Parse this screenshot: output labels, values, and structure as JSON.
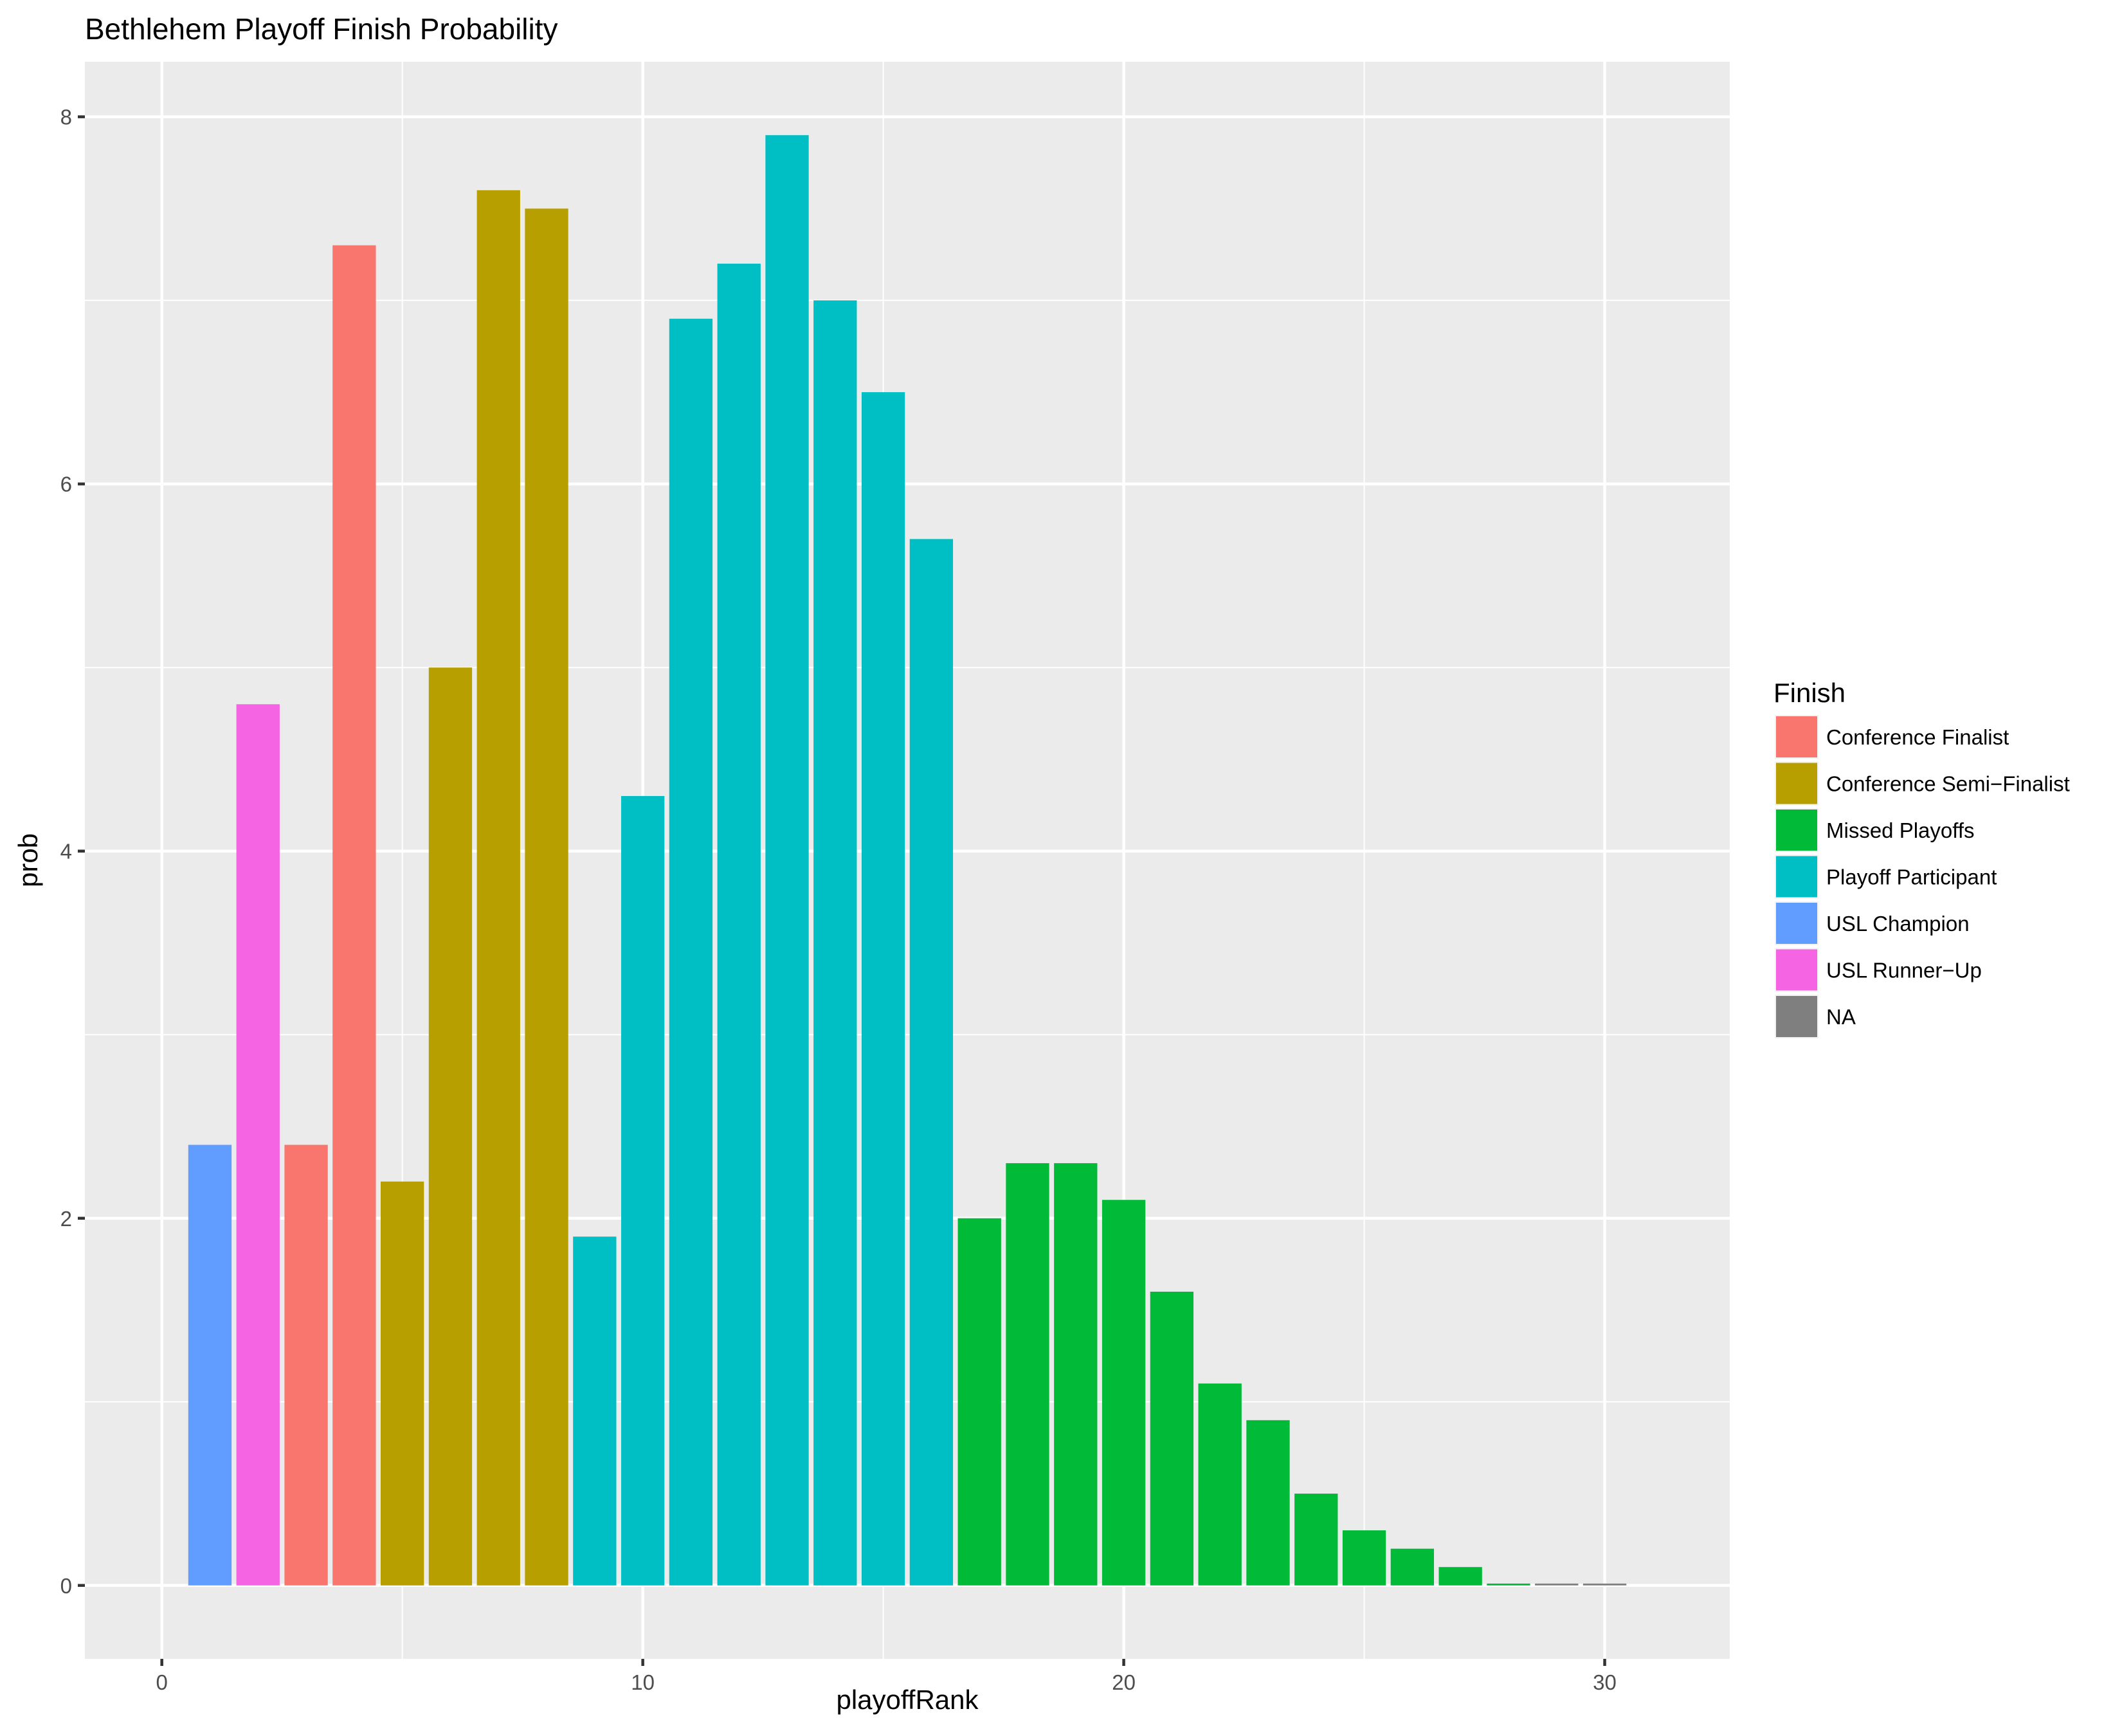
{
  "chart_data": {
    "type": "bar",
    "title": "Bethlehem Playoff Finish Probability",
    "xlabel": "playoffRank",
    "ylabel": "prob",
    "xlim": [
      -1.6,
      32.6
    ],
    "ylim": [
      -0.4,
      8.3
    ],
    "x_ticks": [
      0,
      10,
      20,
      30
    ],
    "y_ticks": [
      0,
      2,
      4,
      6,
      8
    ],
    "grid": true,
    "legend_title": "Finish",
    "legend_position": "right",
    "legend": [
      {
        "name": "Conference Finalist",
        "color": "#F8766D"
      },
      {
        "name": "Conference Semi−Finalist",
        "color": "#B79F00"
      },
      {
        "name": "Missed Playoffs",
        "color": "#00BA38"
      },
      {
        "name": "Playoff Participant",
        "color": "#00BFC4"
      },
      {
        "name": "USL Champion",
        "color": "#619CFF"
      },
      {
        "name": "USL Runner−Up",
        "color": "#F564E3"
      },
      {
        "name": "NA",
        "color": "#7F7F7F"
      }
    ],
    "bars": [
      {
        "x": 1,
        "y": 2.4,
        "finish": "USL Champion"
      },
      {
        "x": 2,
        "y": 4.8,
        "finish": "USL Runner−Up"
      },
      {
        "x": 3,
        "y": 2.4,
        "finish": "Conference Finalist"
      },
      {
        "x": 4,
        "y": 7.3,
        "finish": "Conference Finalist"
      },
      {
        "x": 5,
        "y": 2.2,
        "finish": "Conference Semi−Finalist"
      },
      {
        "x": 6,
        "y": 5.0,
        "finish": "Conference Semi−Finalist"
      },
      {
        "x": 7,
        "y": 7.6,
        "finish": "Conference Semi−Finalist"
      },
      {
        "x": 8,
        "y": 7.5,
        "finish": "Conference Semi−Finalist"
      },
      {
        "x": 9,
        "y": 1.9,
        "finish": "Playoff Participant"
      },
      {
        "x": 10,
        "y": 4.3,
        "finish": "Playoff Participant"
      },
      {
        "x": 11,
        "y": 6.9,
        "finish": "Playoff Participant"
      },
      {
        "x": 12,
        "y": 7.2,
        "finish": "Playoff Participant"
      },
      {
        "x": 13,
        "y": 7.9,
        "finish": "Playoff Participant"
      },
      {
        "x": 14,
        "y": 7.0,
        "finish": "Playoff Participant"
      },
      {
        "x": 15,
        "y": 6.5,
        "finish": "Playoff Participant"
      },
      {
        "x": 16,
        "y": 5.7,
        "finish": "Playoff Participant"
      },
      {
        "x": 17,
        "y": 2.0,
        "finish": "Missed Playoffs"
      },
      {
        "x": 18,
        "y": 2.3,
        "finish": "Missed Playoffs"
      },
      {
        "x": 19,
        "y": 2.3,
        "finish": "Missed Playoffs"
      },
      {
        "x": 20,
        "y": 2.1,
        "finish": "Missed Playoffs"
      },
      {
        "x": 21,
        "y": 1.6,
        "finish": "Missed Playoffs"
      },
      {
        "x": 22,
        "y": 1.1,
        "finish": "Missed Playoffs"
      },
      {
        "x": 23,
        "y": 0.9,
        "finish": "Missed Playoffs"
      },
      {
        "x": 24,
        "y": 0.5,
        "finish": "Missed Playoffs"
      },
      {
        "x": 25,
        "y": 0.3,
        "finish": "Missed Playoffs"
      },
      {
        "x": 26,
        "y": 0.2,
        "finish": "Missed Playoffs"
      },
      {
        "x": 27,
        "y": 0.1,
        "finish": "Missed Playoffs"
      },
      {
        "x": 28,
        "y": 0.01,
        "finish": "Missed Playoffs"
      },
      {
        "x": 29,
        "y": 0.01,
        "finish": "NA"
      },
      {
        "x": 30,
        "y": 0.01,
        "finish": "NA"
      }
    ]
  }
}
